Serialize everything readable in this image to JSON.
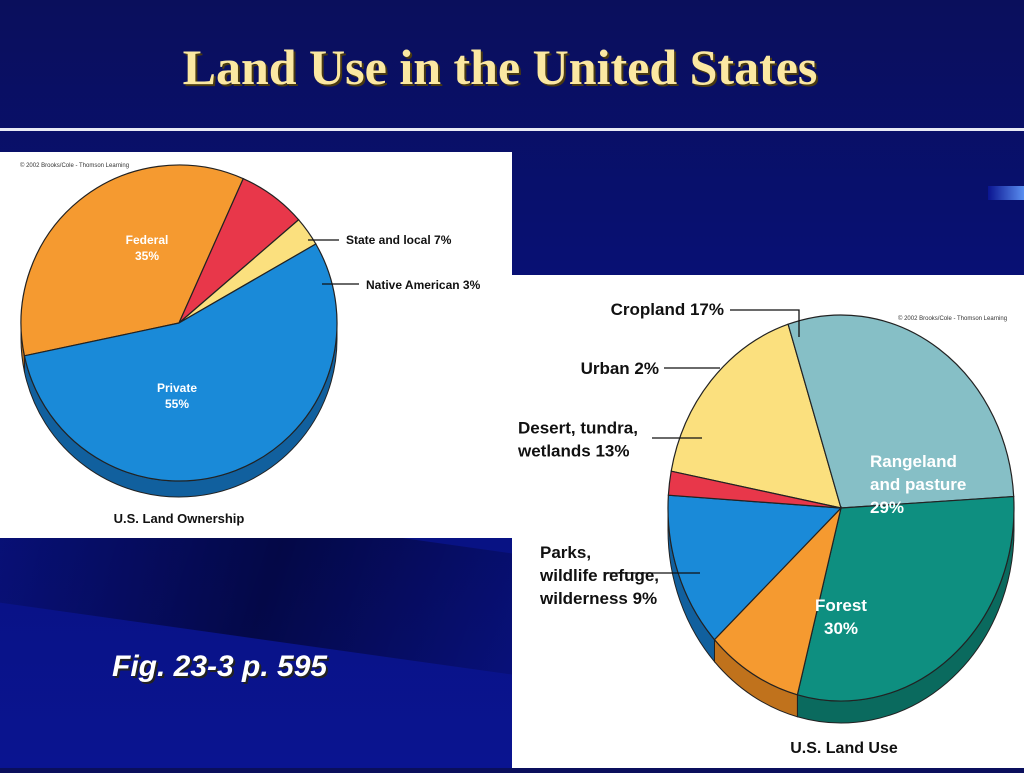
{
  "slide": {
    "title": "Land Use in the United States",
    "caption": "Fig. 23-3 p. 595"
  },
  "colors": {
    "background": "#07107a",
    "title": "#fbe8a2",
    "orange": "#f59a30",
    "red": "#e8374a",
    "yellow": "#fbe07e",
    "blue": "#1a8ad8",
    "teal_light": "#86bfc6",
    "teal_dark": "#0e8f80"
  },
  "chart_data": [
    {
      "type": "pie",
      "title": "U.S. Land Ownership",
      "copyright": "© 2002 Brooks/Cole - Thomson Learning",
      "slices": [
        {
          "name": "Federal",
          "value": 35,
          "label_lines": [
            "Federal",
            "35%"
          ],
          "color": "#f59a30",
          "side": "#c0721c",
          "label_inside": true
        },
        {
          "name": "State and local",
          "value": 7,
          "label_lines": [
            "State and local 7%"
          ],
          "color": "#e8374a",
          "side": "#b02030",
          "label_inside": false
        },
        {
          "name": "Native American",
          "value": 3,
          "label_lines": [
            "Native American 3%"
          ],
          "color": "#fbe07e",
          "side": "#c8a848",
          "label_inside": false
        },
        {
          "name": "Private",
          "value": 55,
          "label_lines": [
            "Private",
            "55%"
          ],
          "color": "#1a8ad8",
          "side": "#11609e",
          "label_inside": true
        }
      ]
    },
    {
      "type": "pie",
      "title": "U.S. Land Use",
      "copyright": "© 2002 Brooks/Cole - Thomson Learning",
      "slices": [
        {
          "name": "Cropland",
          "value": 17,
          "label_lines": [
            "Cropland 17%"
          ],
          "color": "#fbe07e",
          "side": "#c8a848",
          "label_inside": false
        },
        {
          "name": "Rangeland and pasture",
          "value": 29,
          "label_lines": [
            "Rangeland",
            "and pasture",
            "29%"
          ],
          "color": "#86bfc6",
          "side": "#4f8f98",
          "label_inside": true
        },
        {
          "name": "Forest",
          "value": 30,
          "label_lines": [
            "Forest",
            "30%"
          ],
          "color": "#0e8f80",
          "side": "#0a6a5e",
          "label_inside": true
        },
        {
          "name": "Parks, wildlife refuge, wilderness",
          "value": 9,
          "label_lines": [
            "Parks,",
            "wildlife refuge,",
            "wilderness 9%"
          ],
          "color": "#f59a30",
          "side": "#c0721c",
          "label_inside": false
        },
        {
          "name": "Desert, tundra, wetlands",
          "value": 13,
          "label_lines": [
            "Desert, tundra,",
            "wetlands 13%"
          ],
          "color": "#1a8ad8",
          "side": "#11609e",
          "label_inside": false
        },
        {
          "name": "Urban",
          "value": 2,
          "label_lines": [
            "Urban 2%"
          ],
          "color": "#e8374a",
          "side": "#b02030",
          "label_inside": false
        }
      ]
    }
  ]
}
